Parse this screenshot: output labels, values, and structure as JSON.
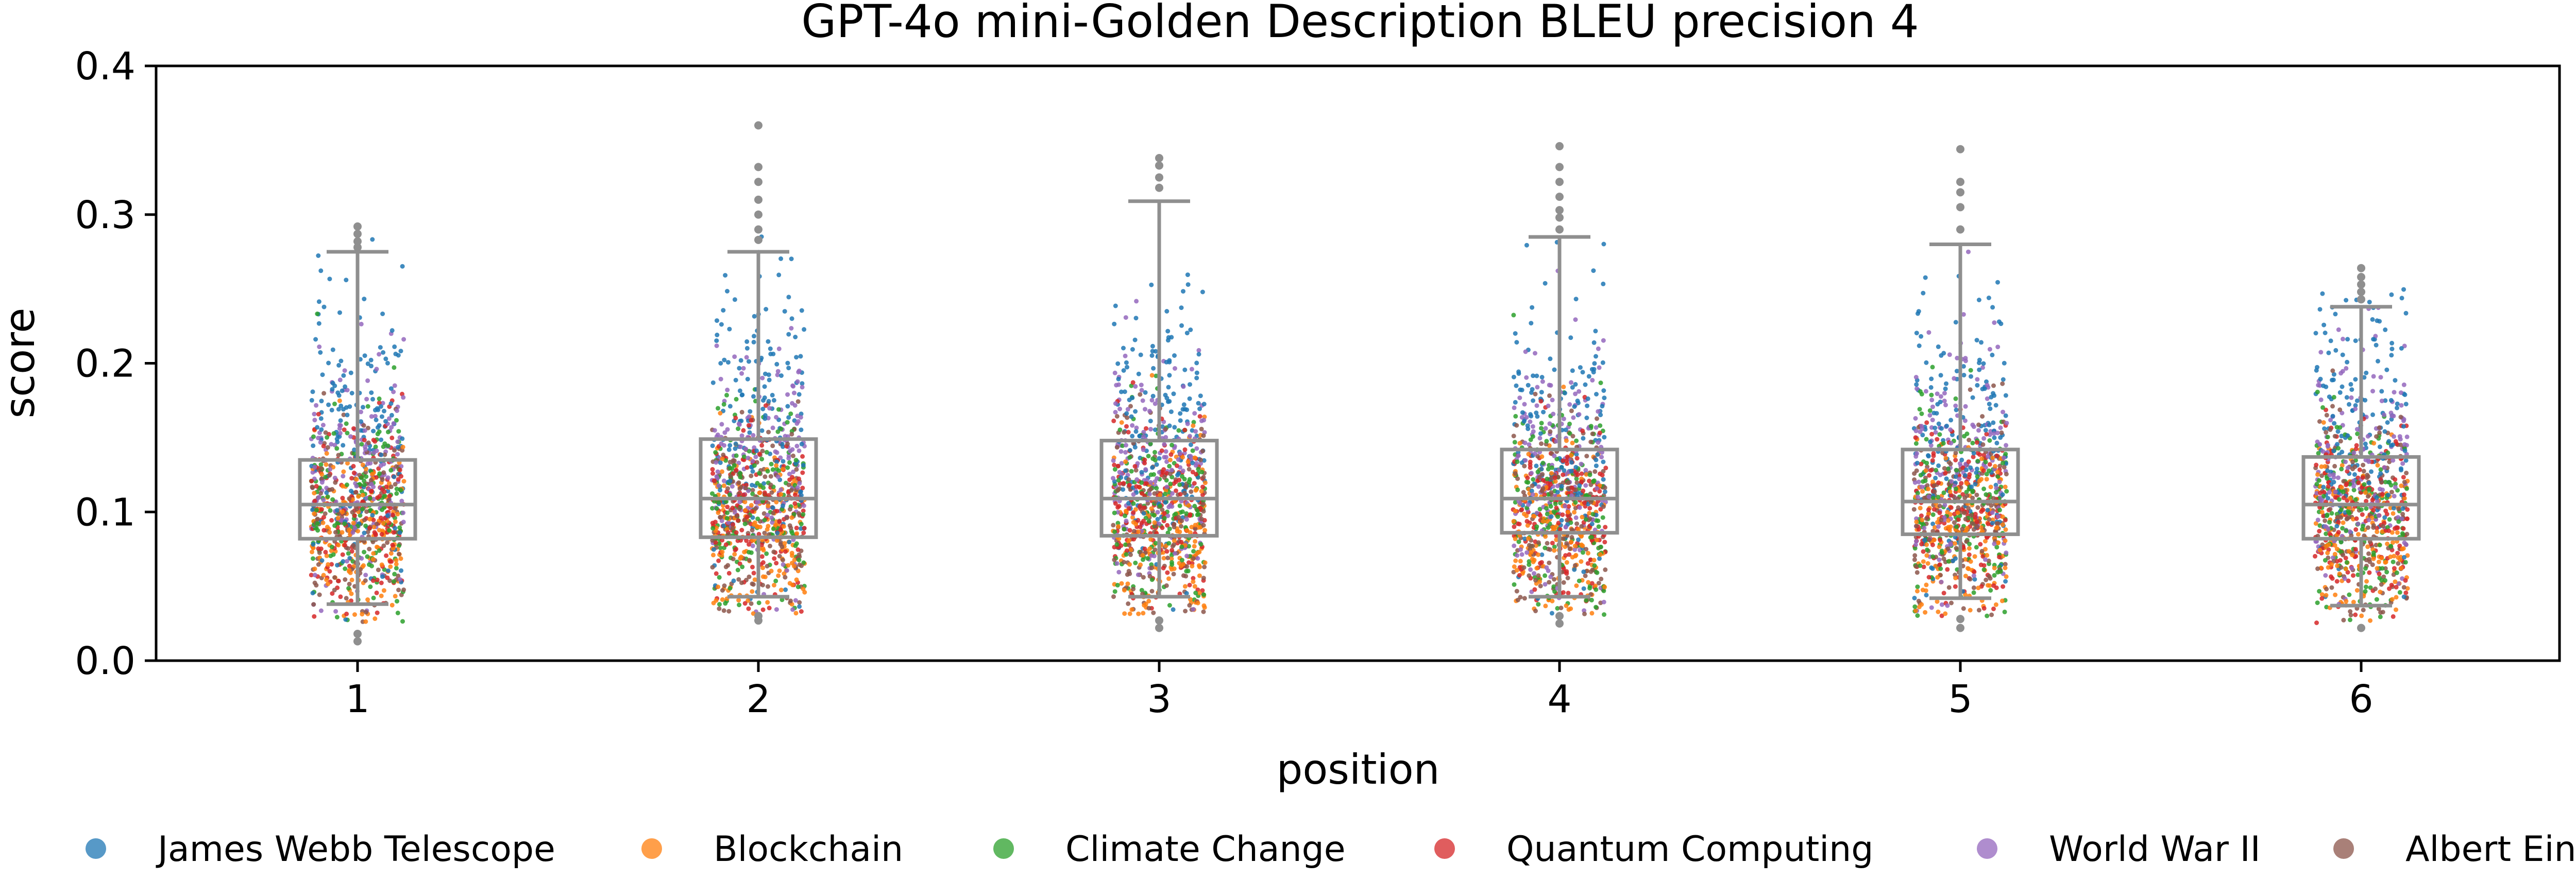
{
  "chart_data": {
    "type": "box_strip",
    "title": "GPT-4o mini-Golden Description BLEU precision 4",
    "xlabel": "position",
    "ylabel": "score",
    "ylim": [
      0.0,
      0.4
    ],
    "yticks": [
      "0.0",
      "0.1",
      "0.2",
      "0.3",
      "0.4"
    ],
    "categories": [
      "1",
      "2",
      "3",
      "4",
      "5",
      "6"
    ],
    "boxes": [
      {
        "position": "1",
        "whisker_low": 0.038,
        "q1": 0.082,
        "median": 0.105,
        "q3": 0.135,
        "whisker_high": 0.275,
        "outliers": [
          0.278,
          0.282,
          0.287,
          0.292,
          0.013,
          0.018
        ]
      },
      {
        "position": "2",
        "whisker_low": 0.043,
        "q1": 0.083,
        "median": 0.109,
        "q3": 0.149,
        "whisker_high": 0.275,
        "outliers": [
          0.283,
          0.29,
          0.3,
          0.31,
          0.322,
          0.332,
          0.36,
          0.027,
          0.03
        ]
      },
      {
        "position": "3",
        "whisker_low": 0.043,
        "q1": 0.084,
        "median": 0.109,
        "q3": 0.148,
        "whisker_high": 0.309,
        "outliers": [
          0.318,
          0.325,
          0.333,
          0.338,
          0.022,
          0.027
        ]
      },
      {
        "position": "4",
        "whisker_low": 0.043,
        "q1": 0.086,
        "median": 0.109,
        "q3": 0.142,
        "whisker_high": 0.285,
        "outliers": [
          0.29,
          0.298,
          0.303,
          0.312,
          0.322,
          0.332,
          0.346,
          0.025,
          0.03
        ]
      },
      {
        "position": "5",
        "whisker_low": 0.042,
        "q1": 0.085,
        "median": 0.107,
        "q3": 0.142,
        "whisker_high": 0.28,
        "outliers": [
          0.29,
          0.305,
          0.315,
          0.322,
          0.344,
          0.022,
          0.028
        ]
      },
      {
        "position": "6",
        "whisker_low": 0.037,
        "q1": 0.082,
        "median": 0.105,
        "q3": 0.137,
        "whisker_high": 0.238,
        "outliers": [
          0.243,
          0.248,
          0.253,
          0.258,
          0.264,
          0.022
        ]
      }
    ],
    "series": [
      {
        "name": "James Webb Telescope",
        "color": "#1f77b4",
        "center": 0.16,
        "spread": 0.05
      },
      {
        "name": "Blockchain",
        "color": "#ff7f0e",
        "center": 0.085,
        "spread": 0.03
      },
      {
        "name": "Climate Change",
        "color": "#2ca02c",
        "center": 0.1,
        "spread": 0.035
      },
      {
        "name": "Quantum Computing",
        "color": "#d62728",
        "center": 0.1,
        "spread": 0.03
      },
      {
        "name": "World War II",
        "color": "#9467bd",
        "center": 0.13,
        "spread": 0.04
      },
      {
        "name": "Albert Einstein",
        "color": "#8c564b",
        "center": 0.095,
        "spread": 0.035
      }
    ],
    "points_per_series": 160,
    "grid": false,
    "legend_position": "bottom"
  }
}
